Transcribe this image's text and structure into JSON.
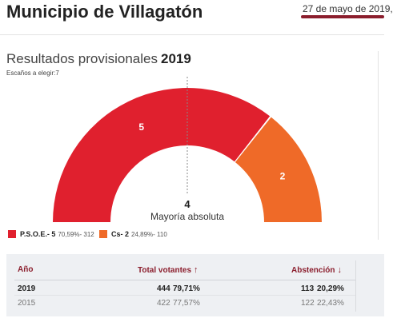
{
  "header": {
    "title": "Municipio de Villagatón",
    "date": "27 de mayo de 2019,"
  },
  "results": {
    "title": "Resultados provisionales",
    "year": "2019",
    "seats_label": "Escaños a elegir:7",
    "majority_number": "4",
    "majority_label": "Mayoría absoluta"
  },
  "chart_data": {
    "type": "pie",
    "title": "",
    "total_seats": 7,
    "series": [
      {
        "name": "P.S.O.E.",
        "seats": 5,
        "seat_label": "5",
        "color": "#e0202e"
      },
      {
        "name": "Cs",
        "seats": 2,
        "seat_label": "2",
        "color": "#ef6a28"
      }
    ]
  },
  "legend": [
    {
      "name": "P.S.O.E.- 5",
      "detail": "70,59%- 312",
      "color": "#e0202e"
    },
    {
      "name": "Cs- 2",
      "detail": "24,89%- 110",
      "color": "#ef6a28"
    }
  ],
  "table": {
    "headers": {
      "year": "Año",
      "votes": "Total votantes",
      "votes_arrow": "↑",
      "abstention": "Abstención",
      "abstention_arrow": "↓"
    },
    "rows": [
      {
        "year": "2019",
        "votes": "444",
        "votes_pct": "79,71%",
        "abst": "113",
        "abst_pct": "20,29%"
      },
      {
        "year": "2015",
        "votes": "422",
        "votes_pct": "77,57%",
        "abst": "122",
        "abst_pct": "22,43%"
      }
    ]
  }
}
